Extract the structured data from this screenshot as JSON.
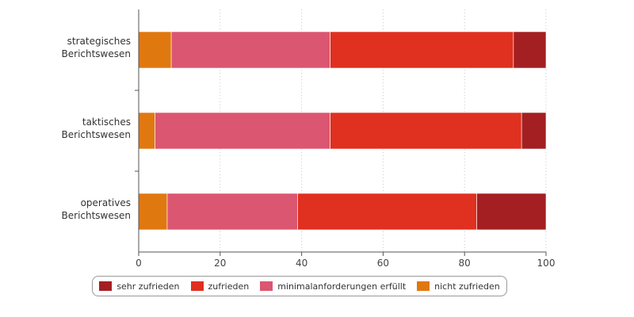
{
  "chart_data": {
    "type": "bar",
    "orientation": "horizontal",
    "stacked": true,
    "categories": [
      [
        "strategisches",
        "Berichtswesen"
      ],
      [
        "taktisches",
        "Berichtswesen"
      ],
      [
        "operatives",
        "Berichtswesen"
      ]
    ],
    "series": [
      {
        "name": "nicht zufrieden",
        "color": "#e07810",
        "values": [
          8,
          4,
          7
        ]
      },
      {
        "name": "minimalanforderungen erfüllt",
        "color": "#db5670",
        "values": [
          39,
          43,
          32
        ]
      },
      {
        "name": "zufrieden",
        "color": "#e03020",
        "values": [
          45,
          47,
          44
        ]
      },
      {
        "name": "sehr zufrieden",
        "color": "#a41f22",
        "values": [
          8,
          6,
          17
        ]
      }
    ],
    "xlim": [
      0,
      100
    ],
    "xticks": [
      0,
      20,
      40,
      60,
      80,
      100
    ],
    "grid": "vertical-dotted",
    "legend_position": "bottom",
    "legend_order": [
      "sehr zufrieden",
      "zufrieden",
      "minimalanforderungen erfüllt",
      "nicht zufrieden"
    ]
  }
}
